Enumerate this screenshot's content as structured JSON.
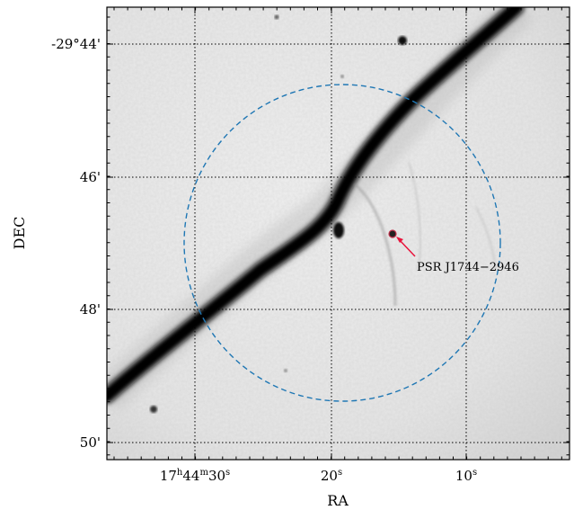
{
  "axes": {
    "xlabel": "RA",
    "ylabel": "DEC",
    "x_ticks": [
      {
        "main": "17",
        "sup_h": "h",
        "mid": "44",
        "sup_m": "m",
        "tail": "30",
        "sup_s": "s"
      },
      {
        "main": "20",
        "sup_s": "s"
      },
      {
        "main": "10",
        "sup_s": "s"
      }
    ],
    "y_ticks": [
      "-29°44'",
      "46'",
      "48'",
      "50'"
    ]
  },
  "annotation": {
    "label": "PSR J1744−2946",
    "arrow_color": "#e8143c"
  },
  "circle_color": "#1f77b4",
  "grid": "dotted"
}
